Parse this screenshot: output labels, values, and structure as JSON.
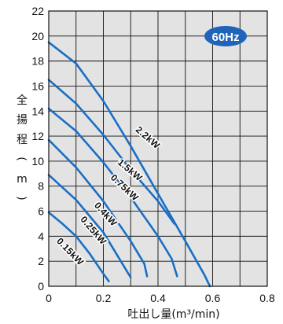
{
  "chart_data": {
    "type": "line",
    "badge": "60Hz",
    "xlabel": "吐出し量(m³/min)",
    "ylabel": "全揚程(m)",
    "xlim": [
      0,
      0.8
    ],
    "ylim": [
      0,
      22
    ],
    "x_ticks": [
      "0.2",
      "0.4",
      "0.6",
      "0.8"
    ],
    "y_ticks": [
      "0",
      "2",
      "4",
      "6",
      "8",
      "10",
      "12",
      "14",
      "16",
      "18",
      "20",
      "22"
    ],
    "grid": true,
    "line_color": "#1a6fc4",
    "panel_color": "#e3e3e3",
    "badge_color": "#1f64b8",
    "series": [
      {
        "name": "2.2kW",
        "points": [
          [
            0,
            19.5
          ],
          [
            0.1,
            17.8
          ],
          [
            0.2,
            14.8
          ],
          [
            0.3,
            11.2
          ],
          [
            0.4,
            7.4
          ],
          [
            0.5,
            3.6
          ],
          [
            0.57,
            0.9
          ],
          [
            0.59,
            0.0
          ]
        ]
      },
      {
        "name": "1.5kW",
        "points": [
          [
            0,
            16.5
          ],
          [
            0.1,
            14.6
          ],
          [
            0.2,
            12.1
          ],
          [
            0.3,
            9.3
          ],
          [
            0.4,
            6.8
          ],
          [
            0.46,
            5.0
          ]
        ]
      },
      {
        "name": "0.75kW",
        "points": [
          [
            0,
            14.2
          ],
          [
            0.1,
            12.4
          ],
          [
            0.2,
            9.9
          ],
          [
            0.3,
            7.1
          ],
          [
            0.4,
            4.0
          ],
          [
            0.45,
            2.2
          ],
          [
            0.47,
            0.8
          ]
        ]
      },
      {
        "name": "0.4kW",
        "points": [
          [
            0,
            11.7
          ],
          [
            0.1,
            9.5
          ],
          [
            0.2,
            6.8
          ],
          [
            0.3,
            3.6
          ],
          [
            0.35,
            1.8
          ],
          [
            0.36,
            0.8
          ]
        ]
      },
      {
        "name": "0.25kW",
        "points": [
          [
            0,
            8.9
          ],
          [
            0.1,
            6.9
          ],
          [
            0.2,
            4.3
          ],
          [
            0.25,
            2.5
          ],
          [
            0.3,
            0.7
          ]
        ]
      },
      {
        "name": "0.15kW",
        "points": [
          [
            0,
            5.9
          ],
          [
            0.05,
            5.0
          ],
          [
            0.1,
            4.0
          ],
          [
            0.15,
            2.6
          ],
          [
            0.2,
            1.0
          ],
          [
            0.22,
            0.4
          ]
        ]
      }
    ]
  }
}
